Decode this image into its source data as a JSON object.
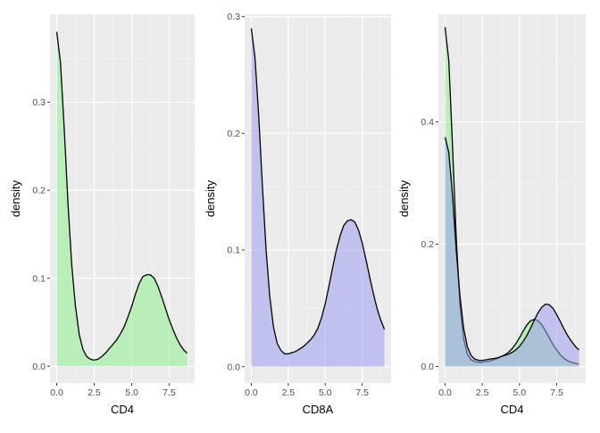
{
  "chart_data": [
    {
      "type": "area",
      "xlabel": "CD4",
      "ylabel": "density",
      "xlim": [
        -0.45,
        9.2
      ],
      "ylim": [
        -0.019,
        0.4
      ],
      "xticks": [
        0,
        2.5,
        5,
        7.5
      ],
      "xtick_labels": [
        "0.0",
        "2.5",
        "5.0",
        "7.5"
      ],
      "yticks": [
        0,
        0.1,
        0.2,
        0.3
      ],
      "ytick_labels": [
        "0.0",
        "0.1",
        "0.2",
        "0.3"
      ],
      "grid": true,
      "series": [
        {
          "color": "#90ee90",
          "x": [
            0,
            0.25,
            0.5,
            0.75,
            1.0,
            1.25,
            1.5,
            1.75,
            2.0,
            2.25,
            2.5,
            2.75,
            3.0,
            3.25,
            3.5,
            3.75,
            4.0,
            4.25,
            4.5,
            4.75,
            5.0,
            5.25,
            5.5,
            5.75,
            6.0,
            6.25,
            6.5,
            6.75,
            7.0,
            7.25,
            7.5,
            7.75,
            8.0,
            8.25,
            8.5,
            8.7
          ],
          "y": [
            0.38,
            0.345,
            0.27,
            0.185,
            0.115,
            0.068,
            0.036,
            0.019,
            0.011,
            0.008,
            0.007,
            0.008,
            0.011,
            0.015,
            0.02,
            0.025,
            0.03,
            0.037,
            0.045,
            0.056,
            0.068,
            0.082,
            0.094,
            0.102,
            0.104,
            0.104,
            0.1,
            0.091,
            0.079,
            0.066,
            0.053,
            0.042,
            0.032,
            0.024,
            0.018,
            0.015
          ]
        }
      ]
    },
    {
      "type": "area",
      "xlabel": "CD8A",
      "ylabel": "density",
      "xlim": [
        -0.45,
        9.45
      ],
      "ylim": [
        -0.014,
        0.302
      ],
      "xticks": [
        0,
        2.5,
        5,
        7.5
      ],
      "xtick_labels": [
        "0.0",
        "2.5",
        "5.0",
        "7.5"
      ],
      "yticks": [
        0,
        0.1,
        0.2,
        0.3
      ],
      "ytick_labels": [
        "0.0",
        "0.1",
        "0.2",
        "0.3"
      ],
      "grid": true,
      "series": [
        {
          "color": "#9e9ef0",
          "x": [
            0,
            0.25,
            0.5,
            0.75,
            1.0,
            1.25,
            1.5,
            1.75,
            2.0,
            2.25,
            2.5,
            2.75,
            3.0,
            3.25,
            3.5,
            3.75,
            4.0,
            4.25,
            4.5,
            4.75,
            5.0,
            5.25,
            5.5,
            5.75,
            6.0,
            6.25,
            6.5,
            6.75,
            7.0,
            7.25,
            7.5,
            7.75,
            8.0,
            8.25,
            8.5,
            8.75,
            9.0
          ],
          "y": [
            0.29,
            0.265,
            0.215,
            0.155,
            0.1,
            0.06,
            0.034,
            0.02,
            0.014,
            0.011,
            0.011,
            0.012,
            0.013,
            0.015,
            0.017,
            0.02,
            0.023,
            0.027,
            0.033,
            0.042,
            0.054,
            0.069,
            0.085,
            0.1,
            0.112,
            0.121,
            0.125,
            0.126,
            0.124,
            0.117,
            0.106,
            0.092,
            0.077,
            0.063,
            0.05,
            0.04,
            0.032
          ]
        }
      ]
    },
    {
      "type": "area",
      "xlabel": "CD4",
      "ylabel": "density",
      "xlim": [
        -0.45,
        9.45
      ],
      "ylim": [
        -0.027,
        0.576
      ],
      "xticks": [
        0,
        2.5,
        5,
        7.5
      ],
      "xtick_labels": [
        "0.0",
        "2.5",
        "5.0",
        "7.5"
      ],
      "yticks": [
        0,
        0.2,
        0.4
      ],
      "ytick_labels": [
        "0.0",
        "0.2",
        "0.4"
      ],
      "grid": true,
      "series": [
        {
          "color": "#90ee90",
          "x": [
            0,
            0.25,
            0.5,
            0.75,
            1.0,
            1.25,
            1.5,
            1.75,
            2.0,
            2.25,
            2.5,
            2.75,
            3.0,
            3.25,
            3.5,
            3.75,
            4.0,
            4.25,
            4.5,
            4.75,
            5.0,
            5.25,
            5.5,
            5.75,
            6.0,
            6.25,
            6.5,
            6.75,
            7.0,
            7.25,
            7.5,
            7.75,
            8.0,
            8.25,
            8.5,
            8.75,
            9.0
          ],
          "y": [
            0.555,
            0.5,
            0.36,
            0.21,
            0.1,
            0.045,
            0.02,
            0.011,
            0.008,
            0.007,
            0.007,
            0.008,
            0.009,
            0.011,
            0.013,
            0.016,
            0.019,
            0.023,
            0.029,
            0.037,
            0.047,
            0.058,
            0.068,
            0.075,
            0.077,
            0.075,
            0.068,
            0.058,
            0.047,
            0.036,
            0.027,
            0.019,
            0.013,
            0.009,
            0.007,
            0.005,
            0.004
          ]
        },
        {
          "color": "#9e9ef0",
          "x": [
            0,
            0.25,
            0.5,
            0.75,
            1.0,
            1.25,
            1.5,
            1.75,
            2.0,
            2.25,
            2.5,
            2.75,
            3.0,
            3.25,
            3.5,
            3.75,
            4.0,
            4.25,
            4.5,
            4.75,
            5.0,
            5.25,
            5.5,
            5.75,
            6.0,
            6.25,
            6.5,
            6.75,
            7.0,
            7.25,
            7.5,
            7.75,
            8.0,
            8.25,
            8.5,
            8.75,
            9.0
          ],
          "y": [
            0.375,
            0.35,
            0.28,
            0.19,
            0.115,
            0.062,
            0.032,
            0.018,
            0.012,
            0.01,
            0.01,
            0.011,
            0.012,
            0.013,
            0.014,
            0.016,
            0.018,
            0.02,
            0.023,
            0.027,
            0.033,
            0.041,
            0.051,
            0.063,
            0.076,
            0.088,
            0.097,
            0.102,
            0.101,
            0.095,
            0.085,
            0.073,
            0.061,
            0.05,
            0.041,
            0.033,
            0.027
          ]
        }
      ]
    }
  ]
}
